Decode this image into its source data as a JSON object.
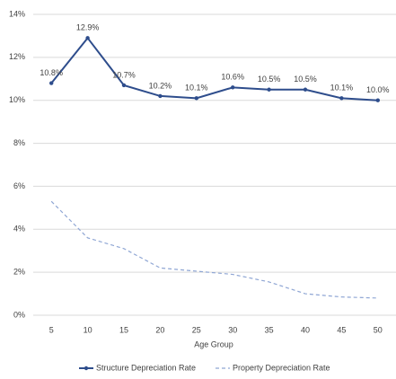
{
  "chart_data": {
    "type": "line",
    "x_label": "Age Group",
    "categories": [
      5,
      10,
      15,
      20,
      25,
      30,
      35,
      40,
      45,
      50
    ],
    "series": [
      {
        "name": "Structure Depreciation Rate",
        "color": "#2e4d8c",
        "style": "solid",
        "marker": true,
        "values": [
          10.8,
          12.9,
          10.7,
          10.2,
          10.1,
          10.6,
          10.5,
          10.5,
          10.1,
          10.0
        ],
        "value_labels": [
          "10.8%",
          "12.9%",
          "10.7%",
          "10.2%",
          "10.1%",
          "10.6%",
          "10.5%",
          "10.5%",
          "10.1%",
          "10.0%"
        ]
      },
      {
        "name": "Property Depreciation Rate",
        "color": "#8fa6d4",
        "style": "dashed",
        "marker": false,
        "values": [
          5.3,
          3.6,
          3.1,
          2.2,
          2.05,
          1.9,
          1.55,
          1.0,
          0.85,
          0.8
        ]
      }
    ],
    "ylim": [
      0,
      14
    ],
    "yticks": [
      {
        "value": 0,
        "label": "0%"
      },
      {
        "value": 2,
        "label": "2%"
      },
      {
        "value": 4,
        "label": "4%"
      },
      {
        "value": 6,
        "label": "6%"
      },
      {
        "value": 8,
        "label": "8%"
      },
      {
        "value": 10,
        "label": "10%"
      },
      {
        "value": 12,
        "label": "12%"
      },
      {
        "value": 14,
        "label": "14%"
      }
    ],
    "grid": true
  }
}
